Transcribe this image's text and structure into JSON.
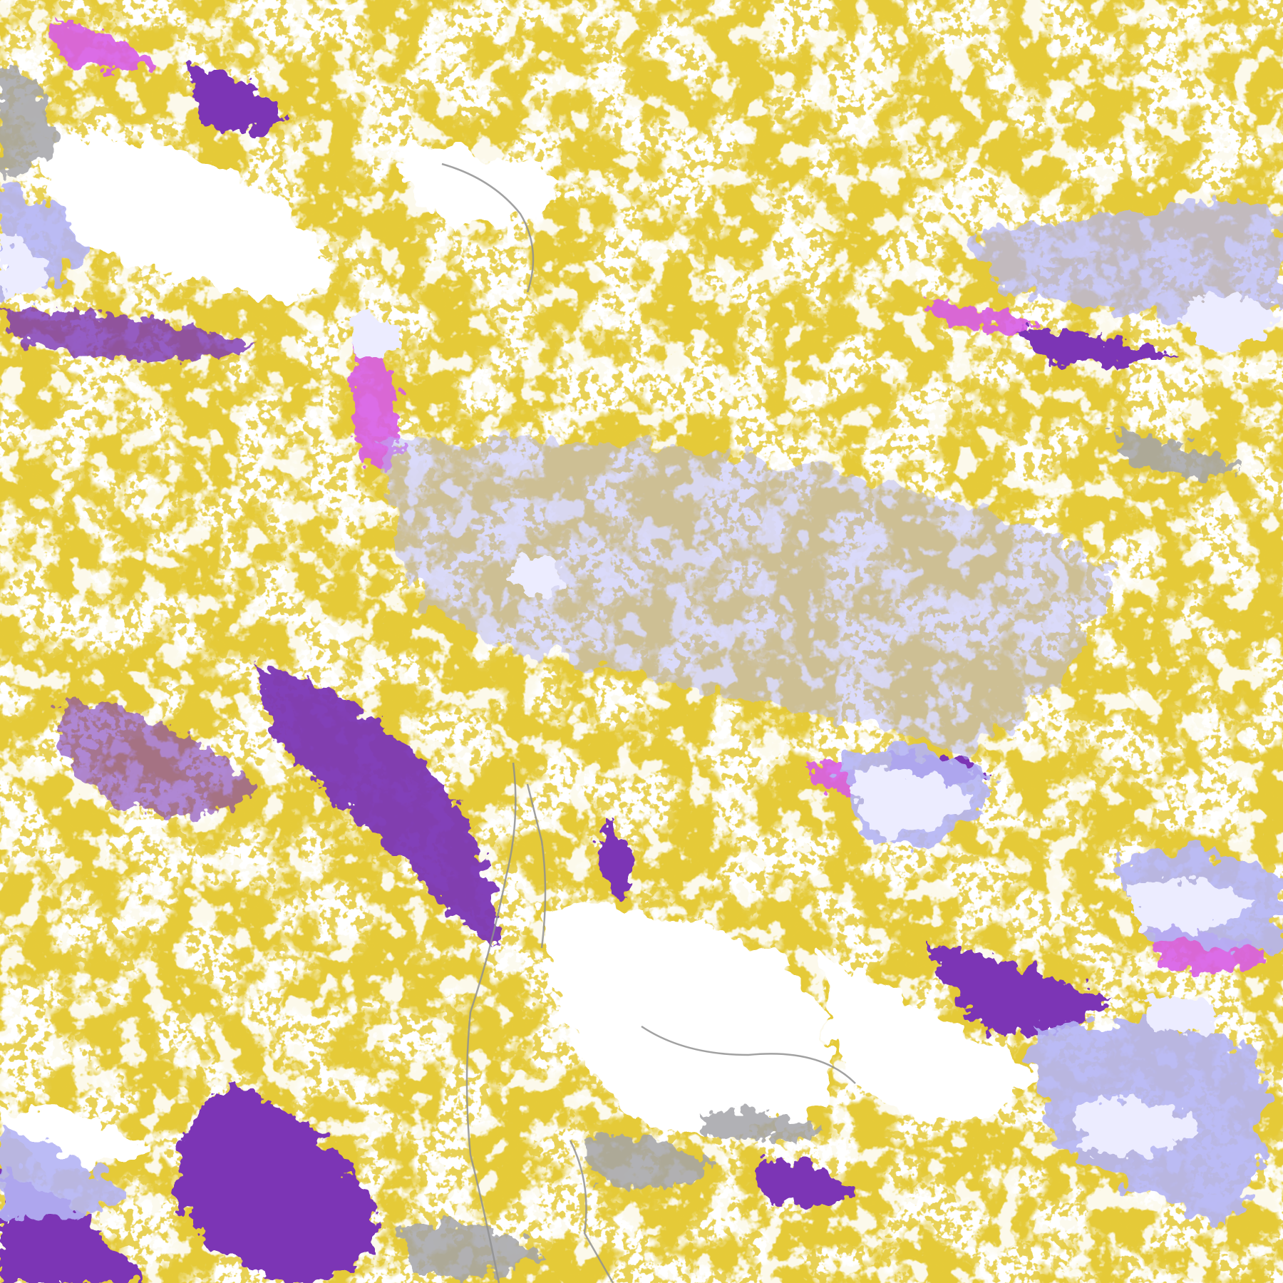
{
  "image": {
    "kind": "false-color satellite cloud classification",
    "palette": {
      "clear": "#ffffff",
      "low_cloud": "#c8960a",
      "mid_cloud_purple": "#7b35b5",
      "magenta": "#d85ce6",
      "lavender": "#b4b4f4",
      "light_lavender": "#ececff",
      "gray": "#a4a4a8",
      "coastline": "#909090"
    }
  }
}
